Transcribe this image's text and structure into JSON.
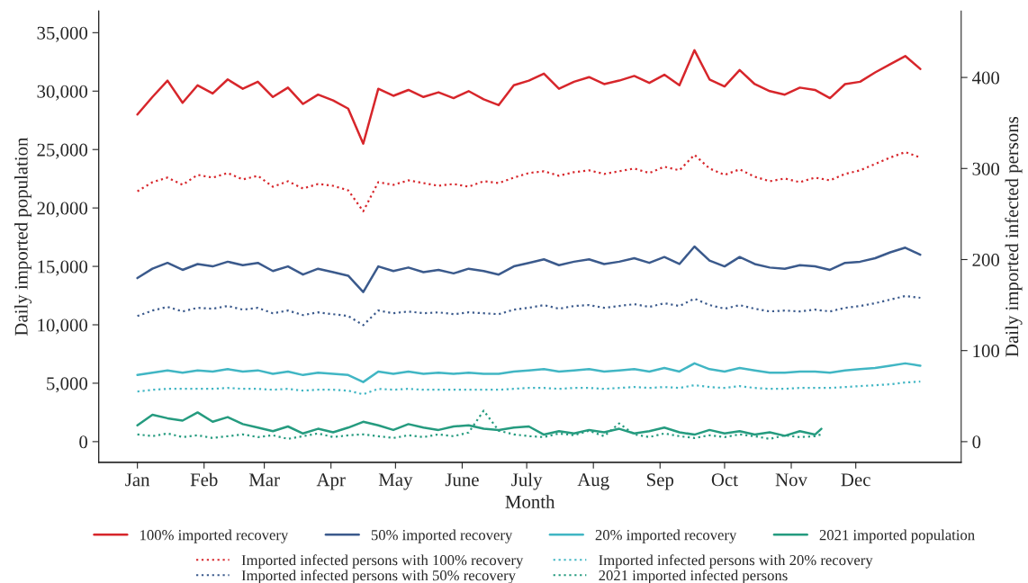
{
  "chart_data": {
    "type": "line",
    "xlabel": "Month",
    "ylabel": "Daily imported population",
    "y2label": "Daily imported infected persons",
    "x": [
      "2021-01-01",
      "2021-01-08",
      "2021-01-15",
      "2021-01-22",
      "2021-01-29",
      "2021-02-05",
      "2021-02-12",
      "2021-02-19",
      "2021-02-26",
      "2021-03-05",
      "2021-03-12",
      "2021-03-19",
      "2021-03-26",
      "2021-04-02",
      "2021-04-09",
      "2021-04-16",
      "2021-04-23",
      "2021-04-30",
      "2021-05-07",
      "2021-05-14",
      "2021-05-21",
      "2021-05-28",
      "2021-06-04",
      "2021-06-11",
      "2021-06-18",
      "2021-06-25",
      "2021-07-02",
      "2021-07-09",
      "2021-07-16",
      "2021-07-23",
      "2021-07-30",
      "2021-08-06",
      "2021-08-13",
      "2021-08-20",
      "2021-08-27",
      "2021-09-03",
      "2021-09-10",
      "2021-09-17",
      "2021-09-24",
      "2021-10-01",
      "2021-10-08",
      "2021-10-15",
      "2021-10-22",
      "2021-10-29",
      "2021-11-05",
      "2021-11-12",
      "2021-11-19",
      "2021-11-26",
      "2021-12-03",
      "2021-12-10",
      "2021-12-17",
      "2021-12-24",
      "2021-12-31"
    ],
    "series": [
      {
        "name": "100% imported recovery",
        "color": "#d7262b",
        "line_style": "solid",
        "values": [
          28000,
          29500,
          30900,
          29000,
          30500,
          29800,
          31000,
          30200,
          30800,
          29500,
          30300,
          28900,
          29700,
          29200,
          28500,
          25500,
          30200,
          29600,
          30100,
          29500,
          29900,
          29400,
          30000,
          29300,
          28800,
          30500,
          30900,
          31500,
          30200,
          30800,
          31200,
          30600,
          30900,
          31300,
          30700,
          31400,
          30500,
          33500,
          31000,
          30400,
          31800,
          30600,
          30000,
          29700,
          30300,
          30100,
          29400,
          30600,
          30800,
          31600,
          32300,
          33000,
          31900
        ]
      },
      {
        "name": "50% imported recovery",
        "color": "#3b5a8c",
        "line_style": "solid",
        "values": [
          14000,
          14800,
          15300,
          14700,
          15200,
          15000,
          15400,
          15100,
          15300,
          14600,
          15000,
          14300,
          14800,
          14500,
          14200,
          12800,
          15000,
          14600,
          14900,
          14500,
          14700,
          14400,
          14800,
          14600,
          14300,
          15000,
          15300,
          15600,
          15100,
          15400,
          15600,
          15200,
          15400,
          15700,
          15300,
          15800,
          15200,
          16700,
          15500,
          15000,
          15800,
          15200,
          14900,
          14800,
          15100,
          15000,
          14700,
          15300,
          15400,
          15700,
          16200,
          16600,
          16000
        ]
      },
      {
        "name": "20% imported recovery",
        "color": "#41b6c4",
        "line_style": "solid",
        "values": [
          5700,
          5900,
          6100,
          5900,
          6100,
          6000,
          6200,
          6000,
          6100,
          5800,
          6000,
          5700,
          5900,
          5800,
          5700,
          5100,
          6000,
          5800,
          6000,
          5800,
          5900,
          5800,
          5900,
          5800,
          5800,
          6000,
          6100,
          6200,
          6000,
          6100,
          6200,
          6000,
          6100,
          6200,
          6000,
          6300,
          6000,
          6700,
          6200,
          6000,
          6300,
          6100,
          5900,
          5900,
          6000,
          6000,
          5900,
          6100,
          6200,
          6300,
          6500,
          6700,
          6500
        ]
      },
      {
        "name": "2021 imported population",
        "color": "#259b7f",
        "line_style": "solid",
        "x": [
          "2021-01-01",
          "2021-01-08",
          "2021-01-15",
          "2021-01-22",
          "2021-01-29",
          "2021-02-05",
          "2021-02-12",
          "2021-02-19",
          "2021-02-26",
          "2021-03-05",
          "2021-03-12",
          "2021-03-19",
          "2021-03-26",
          "2021-04-02",
          "2021-04-09",
          "2021-04-16",
          "2021-04-23",
          "2021-04-30",
          "2021-05-07",
          "2021-05-14",
          "2021-05-21",
          "2021-05-28",
          "2021-06-04",
          "2021-06-11",
          "2021-06-18",
          "2021-06-25",
          "2021-07-02",
          "2021-07-09",
          "2021-07-16",
          "2021-07-23",
          "2021-07-30",
          "2021-08-06",
          "2021-08-13",
          "2021-08-20",
          "2021-08-27",
          "2021-09-03",
          "2021-09-10",
          "2021-09-17",
          "2021-09-24",
          "2021-10-01",
          "2021-10-08",
          "2021-10-15",
          "2021-10-22",
          "2021-10-29",
          "2021-11-05",
          "2021-11-12",
          "2021-11-15"
        ],
        "values": [
          1400,
          2300,
          2000,
          1800,
          2500,
          1700,
          2100,
          1500,
          1200,
          900,
          1300,
          700,
          1100,
          800,
          1200,
          1700,
          1400,
          1000,
          1500,
          1200,
          1000,
          1300,
          1400,
          1100,
          1000,
          1200,
          1300,
          600,
          900,
          700,
          1000,
          800,
          1100,
          700,
          900,
          1200,
          800,
          600,
          1000,
          700,
          900,
          600,
          800,
          500,
          900,
          600,
          1100
        ]
      },
      {
        "name": "Imported infected persons with 100% recovery",
        "color": "#d7262b",
        "line_style": "dotted",
        "axis": "y2",
        "values": [
          275,
          285,
          290,
          282,
          293,
          290,
          295,
          288,
          292,
          280,
          286,
          278,
          283,
          281,
          276,
          253,
          285,
          282,
          287,
          284,
          281,
          283,
          280,
          286,
          284,
          290,
          295,
          297,
          292,
          296,
          298,
          294,
          297,
          300,
          295,
          302,
          298,
          315,
          300,
          293,
          299,
          291,
          286,
          289,
          285,
          290,
          287,
          294,
          298,
          305,
          312,
          318,
          312
        ]
      },
      {
        "name": "Imported infected persons with 50% recovery",
        "color": "#3b5a8c",
        "line_style": "dotted",
        "axis": "y2",
        "values": [
          138,
          144,
          148,
          143,
          147,
          146,
          149,
          145,
          147,
          141,
          144,
          139,
          142,
          140,
          138,
          128,
          144,
          141,
          143,
          141,
          142,
          140,
          142,
          141,
          140,
          145,
          147,
          150,
          146,
          149,
          150,
          147,
          149,
          151,
          148,
          152,
          149,
          157,
          150,
          146,
          150,
          146,
          143,
          144,
          143,
          145,
          143,
          147,
          149,
          152,
          156,
          160,
          158
        ]
      },
      {
        "name": "Imported infected persons with 20% recovery",
        "color": "#41b6c4",
        "line_style": "dotted",
        "axis": "y2",
        "values": [
          55,
          57,
          58,
          58,
          58,
          58,
          59,
          58,
          58,
          57,
          58,
          56,
          57,
          57,
          56,
          52,
          58,
          57,
          58,
          57,
          57,
          57,
          57,
          57,
          57,
          58,
          59,
          59,
          58,
          59,
          59,
          58,
          59,
          60,
          59,
          60,
          59,
          62,
          60,
          59,
          61,
          59,
          58,
          58,
          59,
          59,
          59,
          60,
          61,
          62,
          63,
          65,
          66
        ]
      },
      {
        "name": "2021 imported infected persons",
        "color": "#259b7f",
        "line_style": "dotted",
        "axis": "y2",
        "x": [
          "2021-01-01",
          "2021-01-08",
          "2021-01-15",
          "2021-01-22",
          "2021-01-29",
          "2021-02-05",
          "2021-02-12",
          "2021-02-19",
          "2021-02-26",
          "2021-03-05",
          "2021-03-12",
          "2021-03-19",
          "2021-03-26",
          "2021-04-02",
          "2021-04-09",
          "2021-04-16",
          "2021-04-23",
          "2021-04-30",
          "2021-05-07",
          "2021-05-14",
          "2021-05-21",
          "2021-05-28",
          "2021-06-04",
          "2021-06-11",
          "2021-06-18",
          "2021-06-25",
          "2021-07-02",
          "2021-07-09",
          "2021-07-16",
          "2021-07-23",
          "2021-07-30",
          "2021-08-06",
          "2021-08-13",
          "2021-08-20",
          "2021-08-27",
          "2021-09-03",
          "2021-09-10",
          "2021-09-17",
          "2021-09-24",
          "2021-10-01",
          "2021-10-08",
          "2021-10-15",
          "2021-10-22",
          "2021-10-29",
          "2021-11-05",
          "2021-11-12",
          "2021-11-15"
        ],
        "values": [
          8,
          6,
          9,
          5,
          7,
          4,
          6,
          8,
          5,
          7,
          3,
          6,
          9,
          5,
          7,
          8,
          6,
          4,
          7,
          5,
          8,
          6,
          10,
          34,
          12,
          8,
          6,
          5,
          9,
          7,
          12,
          6,
          20,
          8,
          5,
          9,
          6,
          4,
          7,
          5,
          8,
          6,
          3,
          7,
          5,
          6,
          8
        ]
      }
    ],
    "xlim": [
      "2020-12-14",
      "2022-01-19"
    ],
    "xticks": [
      {
        "value": "2021-01-01",
        "label": "Jan"
      },
      {
        "value": "2021-02-01",
        "label": "Feb"
      },
      {
        "value": "2021-03-01",
        "label": "Mar"
      },
      {
        "value": "2021-04-01",
        "label": "Apr"
      },
      {
        "value": "2021-05-01",
        "label": "May"
      },
      {
        "value": "2021-06-01",
        "label": "June"
      },
      {
        "value": "2021-07-01",
        "label": "July"
      },
      {
        "value": "2021-08-01",
        "label": "Aug"
      },
      {
        "value": "2021-09-01",
        "label": "Sep"
      },
      {
        "value": "2021-10-01",
        "label": "Oct"
      },
      {
        "value": "2021-11-01",
        "label": "Nov"
      },
      {
        "value": "2021-12-01",
        "label": "Dec"
      }
    ],
    "ylim": [
      -1770,
      36850
    ],
    "yticks": [
      0,
      {
        "value": 5000,
        "label": "5,000"
      },
      {
        "value": 10000,
        "label": "10,000"
      },
      {
        "value": 15000,
        "label": "15,000"
      },
      {
        "value": 20000,
        "label": "20,000"
      },
      {
        "value": 25000,
        "label": "25,000"
      },
      {
        "value": 30000,
        "label": "30,000"
      },
      {
        "value": 35000,
        "label": "35,000"
      }
    ],
    "y2lim": [
      -22.7,
      472.9
    ],
    "y2ticks": [
      0,
      100,
      200,
      300,
      400
    ],
    "grid": false,
    "legend": "bottom"
  }
}
